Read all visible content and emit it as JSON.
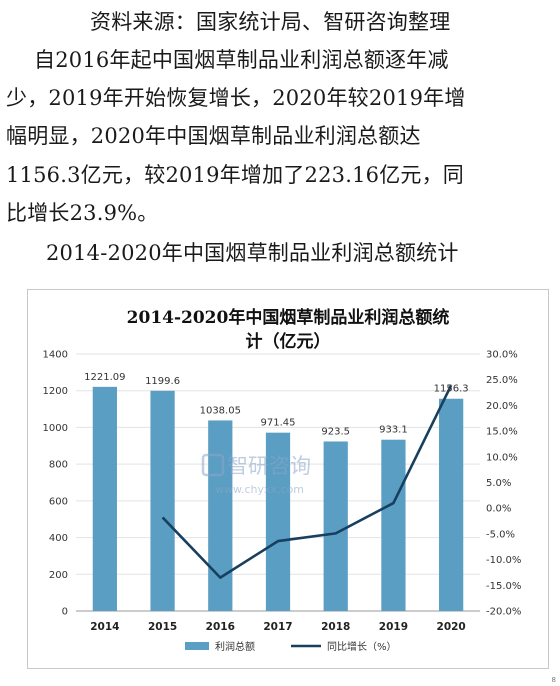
{
  "article": {
    "lines": [
      "资料来源：国家统计局、智研咨询整理",
      "自2016年起中国烟草制品业利润总额逐年减",
      "少，2019年开始恢复增长，2020年较2019年增",
      "幅明显，2020年中国烟草制品业利润总额达",
      "1156.3亿元，较2019年增加了223.16亿元，同",
      "比增长23.9%。",
      "2014-2020年中国烟草制品业利润总额统计"
    ]
  },
  "watermark": {
    "brand": "智研咨询",
    "url": "www.chyxx.com"
  },
  "page_number": "8",
  "colors": {
    "bar": "#5b9ec3",
    "line": "#173f5f",
    "grid": "#e3e3e3"
  },
  "chart_data": {
    "type": "bar",
    "title_lines": [
      "2014-2020年中国烟草制品业利润总额统",
      "计（亿元）"
    ],
    "categories": [
      "2014",
      "2015",
      "2016",
      "2017",
      "2018",
      "2019",
      "2020"
    ],
    "series": [
      {
        "name": "利润总额",
        "type": "bar",
        "axis": "left",
        "values": [
          1221.09,
          1199.6,
          1038.05,
          971.45,
          923.5,
          933.1,
          1156.3
        ],
        "labels": [
          "1221.09",
          "1199.6",
          "1038.05",
          "971.45",
          "923.5",
          "933.1",
          "1156.3"
        ]
      },
      {
        "name": "同比增长（%）",
        "type": "line",
        "axis": "right",
        "values": [
          null,
          -1.8,
          -13.5,
          -6.4,
          -4.9,
          1.0,
          23.9
        ]
      }
    ],
    "y_left": {
      "min": 0,
      "max": 1400,
      "step": 200,
      "ticks": [
        "0",
        "200",
        "400",
        "600",
        "800",
        "1000",
        "1200",
        "1400"
      ]
    },
    "y_right": {
      "min": -20,
      "max": 30,
      "step": 5,
      "ticks": [
        "-20.0%",
        "-15.0%",
        "-10.0%",
        "-5.0%",
        "0.0%",
        "5.0%",
        "10.0%",
        "15.0%",
        "20.0%",
        "25.0%",
        "30.0%"
      ]
    },
    "grid": true,
    "legend_position": "bottom"
  }
}
